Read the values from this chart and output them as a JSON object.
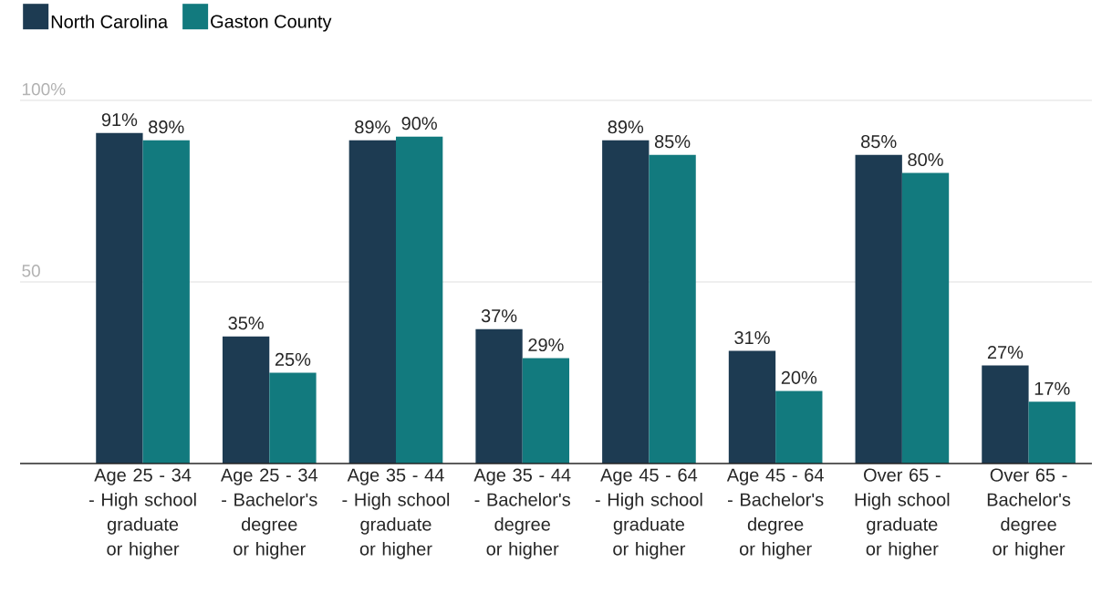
{
  "chart_data": {
    "type": "bar",
    "categories": [
      "Age 25 - 34 - High school graduate or higher",
      "Age 25 - 34 - Bachelor's degree or higher",
      "Age 35 - 44 - High school graduate or higher",
      "Age 35 - 44 - Bachelor's degree or higher",
      "Age 45 - 64 - High school graduate or higher",
      "Age 45 - 64 - Bachelor's degree or higher",
      "Over 65 - High school graduate or higher",
      "Over 65 - Bachelor's degree or higher"
    ],
    "series": [
      {
        "name": "North Carolina",
        "color": "#1d3b52",
        "values": [
          91,
          35,
          89,
          37,
          89,
          31,
          85,
          27
        ],
        "value_labels": [
          "91%",
          "35%",
          "89%",
          "37%",
          "89%",
          "31%",
          "85%",
          "27%"
        ]
      },
      {
        "name": "Gaston County",
        "color": "#127a7e",
        "values": [
          89,
          25,
          90,
          29,
          85,
          20,
          80,
          17
        ],
        "value_labels": [
          "89%",
          "25%",
          "90%",
          "29%",
          "85%",
          "20%",
          "80%",
          "17%"
        ]
      }
    ],
    "ylim": [
      0,
      100
    ],
    "yticks": [
      {
        "value": 50,
        "label": "50"
      },
      {
        "value": 100,
        "label": "100%"
      }
    ],
    "grid": "y",
    "legend": "top left"
  }
}
